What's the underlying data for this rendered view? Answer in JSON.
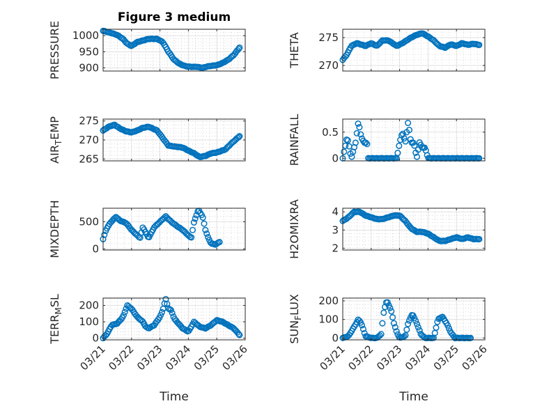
{
  "title": "Figure 3 medium",
  "xlabel": "Time",
  "x_tick_labels": [
    "03/21",
    "03/22",
    "03/23",
    "03/24",
    "03/25",
    "03/26"
  ],
  "colors": {
    "marker": "#0072BD",
    "axes": "#262626",
    "grid": "#d9d9d9"
  },
  "chart_data": [
    {
      "type": "scatter",
      "panel": "top-left",
      "ylabel": "PRESSURE",
      "xlim": [
        0,
        5
      ],
      "ylim": [
        890,
        1020
      ],
      "yticks": [
        900,
        950,
        1000
      ],
      "ytick_labels": [
        "900",
        "950",
        "1000"
      ],
      "title": "Figure 3 medium",
      "keypoints": [
        [
          0.0,
          1015
        ],
        [
          0.3,
          1008
        ],
        [
          0.5,
          1002
        ],
        [
          0.7,
          990
        ],
        [
          0.85,
          975
        ],
        [
          1.0,
          968
        ],
        [
          1.2,
          980
        ],
        [
          1.4,
          985
        ],
        [
          1.6,
          990
        ],
        [
          1.9,
          990
        ],
        [
          2.1,
          980
        ],
        [
          2.3,
          950
        ],
        [
          2.5,
          925
        ],
        [
          2.7,
          912
        ],
        [
          2.9,
          905
        ],
        [
          3.1,
          903
        ],
        [
          3.3,
          903
        ],
        [
          3.5,
          900
        ],
        [
          3.7,
          905
        ],
        [
          4.0,
          908
        ],
        [
          4.2,
          915
        ],
        [
          4.4,
          925
        ],
        [
          4.6,
          940
        ],
        [
          4.8,
          963
        ]
      ],
      "x_tick_labels_shown": false
    },
    {
      "type": "scatter",
      "panel": "top-right",
      "ylabel": "THETA",
      "xlim": [
        0,
        5
      ],
      "ylim": [
        269,
        276.5
      ],
      "yticks": [
        270,
        275
      ],
      "ytick_labels": [
        "270",
        "275"
      ],
      "keypoints": [
        [
          0.0,
          271
        ],
        [
          0.15,
          272
        ],
        [
          0.3,
          273.5
        ],
        [
          0.5,
          274
        ],
        [
          0.8,
          273.5
        ],
        [
          1.0,
          274
        ],
        [
          1.2,
          273.5
        ],
        [
          1.4,
          274.5
        ],
        [
          1.6,
          274.5
        ],
        [
          1.9,
          273.5
        ],
        [
          2.1,
          274
        ],
        [
          2.4,
          275
        ],
        [
          2.6,
          275.5
        ],
        [
          2.8,
          275.8
        ],
        [
          3.0,
          275.2
        ],
        [
          3.2,
          274.5
        ],
        [
          3.4,
          273.5
        ],
        [
          3.6,
          273.2
        ],
        [
          3.8,
          273.8
        ],
        [
          4.0,
          273.5
        ],
        [
          4.2,
          274
        ],
        [
          4.4,
          273.7
        ],
        [
          4.6,
          273.9
        ],
        [
          4.8,
          273.7
        ]
      ],
      "x_tick_labels_shown": false
    },
    {
      "type": "scatter",
      "panel": "second-left",
      "ylabel": "AIR_TEMP",
      "xlim": [
        0,
        5
      ],
      "ylim": [
        264.5,
        275.5
      ],
      "yticks": [
        265,
        270,
        275
      ],
      "ytick_labels": [
        "265",
        "270",
        "275"
      ],
      "keypoints": [
        [
          0.0,
          272.5
        ],
        [
          0.2,
          273.5
        ],
        [
          0.4,
          274
        ],
        [
          0.6,
          273
        ],
        [
          0.8,
          272.3
        ],
        [
          1.0,
          272
        ],
        [
          1.2,
          272.5
        ],
        [
          1.4,
          273.2
        ],
        [
          1.6,
          273.5
        ],
        [
          1.9,
          272.5
        ],
        [
          2.1,
          270.5
        ],
        [
          2.3,
          268.5
        ],
        [
          2.5,
          268.3
        ],
        [
          2.8,
          268
        ],
        [
          3.0,
          267.2
        ],
        [
          3.2,
          266.5
        ],
        [
          3.4,
          265.5
        ],
        [
          3.6,
          265.8
        ],
        [
          3.8,
          266.5
        ],
        [
          4.0,
          266.7
        ],
        [
          4.3,
          267.5
        ],
        [
          4.5,
          269
        ],
        [
          4.8,
          271
        ]
      ],
      "x_tick_labels_shown": false
    },
    {
      "type": "scatter",
      "panel": "second-right",
      "ylabel": "RAINFALL",
      "xlim": [
        0,
        5
      ],
      "ylim": [
        -0.05,
        0.75
      ],
      "yticks": [
        0,
        0.5
      ],
      "ytick_labels": [
        "0",
        "0.5"
      ],
      "keypoints": [
        [
          0.0,
          0
        ],
        [
          0.15,
          0.4
        ],
        [
          0.2,
          0.3
        ],
        [
          0.3,
          0
        ],
        [
          0.45,
          0.3
        ],
        [
          0.55,
          0.7
        ],
        [
          0.65,
          0.4
        ],
        [
          0.75,
          0.3
        ],
        [
          0.85,
          0.3
        ],
        [
          0.9,
          0
        ],
        [
          1.0,
          0
        ],
        [
          1.3,
          0
        ],
        [
          1.6,
          0
        ],
        [
          1.9,
          0
        ],
        [
          2.0,
          0.3
        ],
        [
          2.1,
          0.5
        ],
        [
          2.2,
          0.3
        ],
        [
          2.3,
          0.7
        ],
        [
          2.4,
          0.3
        ],
        [
          2.5,
          0.3
        ],
        [
          2.6,
          0
        ],
        [
          2.7,
          0.3
        ],
        [
          2.8,
          0.2
        ],
        [
          2.9,
          0.2
        ],
        [
          3.0,
          0
        ],
        [
          3.3,
          0
        ],
        [
          3.6,
          0
        ],
        [
          3.9,
          0
        ],
        [
          4.2,
          0
        ],
        [
          4.5,
          0
        ],
        [
          4.8,
          0
        ]
      ],
      "x_tick_labels_shown": false
    },
    {
      "type": "scatter",
      "panel": "third-left",
      "ylabel": "MIXDEPTH",
      "xlim": [
        0,
        5
      ],
      "ylim": [
        -20,
        750
      ],
      "yticks": [
        0,
        500
      ],
      "ytick_labels": [
        "0",
        "500"
      ],
      "keypoints": [
        [
          0.0,
          180
        ],
        [
          0.1,
          350
        ],
        [
          0.25,
          480
        ],
        [
          0.45,
          590
        ],
        [
          0.6,
          520
        ],
        [
          0.8,
          480
        ],
        [
          0.9,
          420
        ],
        [
          1.0,
          350
        ],
        [
          1.2,
          250
        ],
        [
          1.3,
          200
        ],
        [
          1.4,
          400
        ],
        [
          1.5,
          300
        ],
        [
          1.6,
          200
        ],
        [
          1.8,
          400
        ],
        [
          2.0,
          500
        ],
        [
          2.2,
          600
        ],
        [
          2.4,
          500
        ],
        [
          2.6,
          420
        ],
        [
          2.8,
          350
        ],
        [
          3.0,
          250
        ],
        [
          3.1,
          200
        ],
        [
          3.2,
          500
        ],
        [
          3.35,
          720
        ],
        [
          3.5,
          600
        ],
        [
          3.6,
          350
        ],
        [
          3.7,
          200
        ],
        [
          3.8,
          100
        ],
        [
          3.95,
          80
        ],
        [
          4.1,
          130
        ]
      ],
      "x_tick_labels_shown": false
    },
    {
      "type": "scatter",
      "panel": "third-right",
      "ylabel": "H2OMIXRA",
      "xlim": [
        0,
        5
      ],
      "ylim": [
        1.9,
        4.2
      ],
      "yticks": [
        2,
        3,
        4
      ],
      "ytick_labels": [
        "2",
        "3",
        "4"
      ],
      "keypoints": [
        [
          0.0,
          3.5
        ],
        [
          0.2,
          3.7
        ],
        [
          0.4,
          4.0
        ],
        [
          0.6,
          4.0
        ],
        [
          0.8,
          3.8
        ],
        [
          1.0,
          3.7
        ],
        [
          1.2,
          3.6
        ],
        [
          1.4,
          3.6
        ],
        [
          1.6,
          3.7
        ],
        [
          1.8,
          3.8
        ],
        [
          2.0,
          3.8
        ],
        [
          2.2,
          3.5
        ],
        [
          2.4,
          3.1
        ],
        [
          2.6,
          2.9
        ],
        [
          2.8,
          2.9
        ],
        [
          3.0,
          2.8
        ],
        [
          3.2,
          2.6
        ],
        [
          3.4,
          2.4
        ],
        [
          3.6,
          2.4
        ],
        [
          3.8,
          2.5
        ],
        [
          4.0,
          2.6
        ],
        [
          4.2,
          2.5
        ],
        [
          4.4,
          2.6
        ],
        [
          4.6,
          2.5
        ],
        [
          4.8,
          2.5
        ]
      ],
      "x_tick_labels_shown": false
    },
    {
      "type": "scatter",
      "panel": "bottom-left",
      "ylabel": "TERR_MSL",
      "xlim": [
        0,
        5
      ],
      "ylim": [
        -10,
        245
      ],
      "yticks": [
        0,
        100,
        200
      ],
      "ytick_labels": [
        "0",
        "100",
        "200"
      ],
      "keypoints": [
        [
          0.0,
          0
        ],
        [
          0.15,
          30
        ],
        [
          0.3,
          80
        ],
        [
          0.5,
          90
        ],
        [
          0.7,
          130
        ],
        [
          0.85,
          200
        ],
        [
          1.0,
          180
        ],
        [
          1.2,
          130
        ],
        [
          1.4,
          100
        ],
        [
          1.5,
          70
        ],
        [
          1.6,
          60
        ],
        [
          1.8,
          80
        ],
        [
          2.0,
          130
        ],
        [
          2.1,
          170
        ],
        [
          2.2,
          240
        ],
        [
          2.3,
          180
        ],
        [
          2.4,
          170
        ],
        [
          2.5,
          120
        ],
        [
          2.6,
          100
        ],
        [
          2.8,
          60
        ],
        [
          3.0,
          40
        ],
        [
          3.2,
          100
        ],
        [
          3.4,
          70
        ],
        [
          3.6,
          60
        ],
        [
          3.8,
          80
        ],
        [
          4.0,
          110
        ],
        [
          4.2,
          100
        ],
        [
          4.4,
          80
        ],
        [
          4.6,
          60
        ],
        [
          4.8,
          20
        ]
      ],
      "x_tick_labels_shown": true
    },
    {
      "type": "scatter",
      "panel": "bottom-right",
      "ylabel": "SUN_FLUX",
      "xlim": [
        0,
        5
      ],
      "ylim": [
        -10,
        215
      ],
      "yticks": [
        0,
        100,
        200
      ],
      "ytick_labels": [
        "0",
        "100",
        "200"
      ],
      "keypoints": [
        [
          0.0,
          0
        ],
        [
          0.2,
          10
        ],
        [
          0.4,
          60
        ],
        [
          0.55,
          100
        ],
        [
          0.65,
          80
        ],
        [
          0.8,
          10
        ],
        [
          1.0,
          0
        ],
        [
          1.2,
          0
        ],
        [
          1.35,
          20
        ],
        [
          1.45,
          150
        ],
        [
          1.55,
          200
        ],
        [
          1.7,
          150
        ],
        [
          1.8,
          80
        ],
        [
          1.9,
          30
        ],
        [
          2.0,
          0
        ],
        [
          2.2,
          10
        ],
        [
          2.3,
          80
        ],
        [
          2.45,
          130
        ],
        [
          2.6,
          80
        ],
        [
          2.75,
          20
        ],
        [
          2.9,
          0
        ],
        [
          3.2,
          0
        ],
        [
          3.35,
          100
        ],
        [
          3.5,
          115
        ],
        [
          3.65,
          80
        ],
        [
          3.8,
          30
        ],
        [
          3.95,
          0
        ],
        [
          4.2,
          0
        ],
        [
          4.5,
          0
        ]
      ],
      "x_tick_labels_shown": true
    }
  ]
}
